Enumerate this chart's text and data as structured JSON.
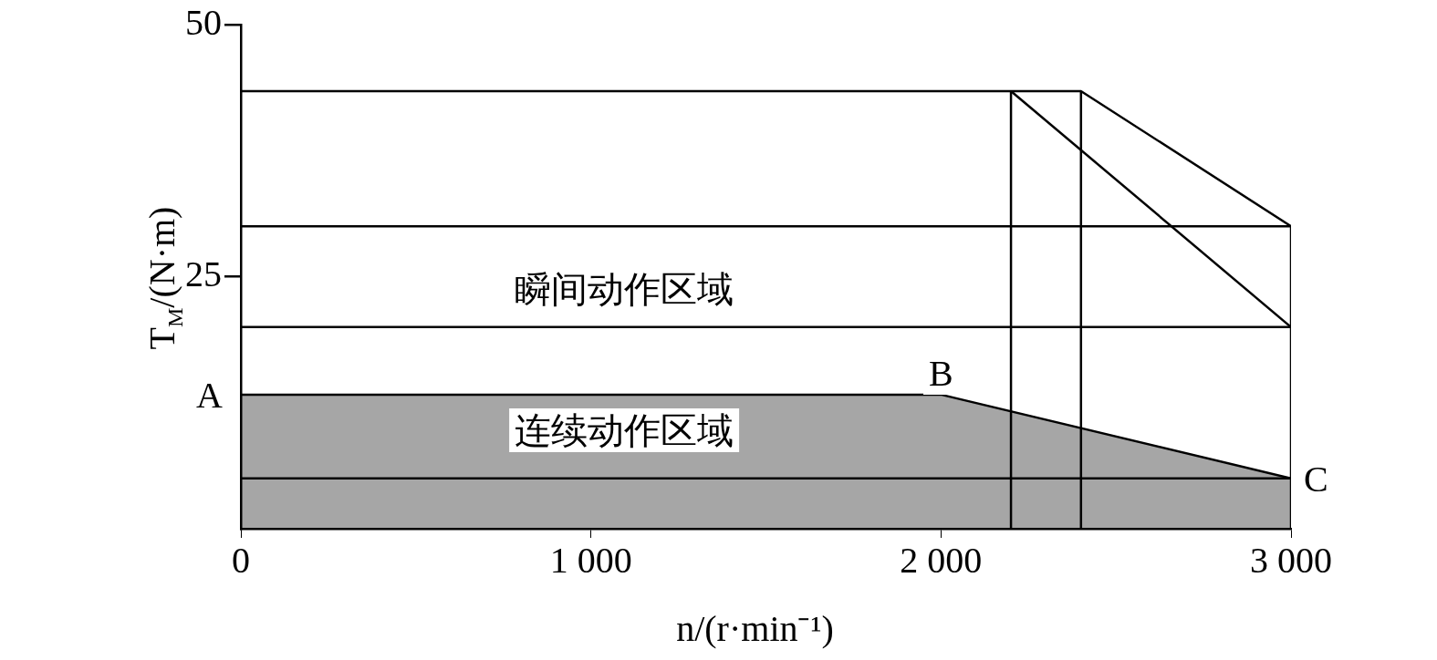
{
  "chart_data": {
    "type": "line",
    "xlabel": "n/(r·min⁻¹)",
    "ylabel": "T$_{M}$/(N·m)",
    "xlim": [
      0,
      3000
    ],
    "ylim": [
      0,
      50
    ],
    "xticks": [
      0,
      {
        "value": 1000,
        "label": "1 000"
      },
      {
        "value": 2000,
        "label": "2 000"
      },
      {
        "value": 3000,
        "label": "3 000"
      }
    ],
    "yticks": [
      25,
      50
    ],
    "grid": false,
    "legend": false,
    "marker": "none",
    "line_style": "solid",
    "series": [
      {
        "color": "#000000",
        "x": [
          0,
          2400,
          3000
        ],
        "values": [
          43.4,
          43.4,
          30
        ]
      },
      {
        "color": "#000000",
        "x": [
          2200,
          3000
        ],
        "values": [
          43.4,
          20
        ]
      },
      {
        "color": "#000000",
        "x": [
          0,
          3000
        ],
        "values": [
          30,
          30
        ]
      },
      {
        "color": "#000000",
        "x": [
          0,
          3000
        ],
        "values": [
          20,
          20
        ]
      },
      {
        "color": "#000000",
        "x": [
          0,
          3000
        ],
        "values": [
          5,
          5
        ]
      },
      {
        "color": "#000000",
        "x": [
          2200,
          2200
        ],
        "values": [
          0,
          43.4
        ]
      },
      {
        "color": "#000000",
        "x": [
          2400,
          2400
        ],
        "values": [
          0,
          43.4
        ]
      },
      {
        "color": "#000000",
        "x": [
          3000,
          3000
        ],
        "values": [
          0,
          30
        ]
      },
      {
        "type": "area",
        "color": "#000000",
        "x": [
          0,
          2000,
          3000
        ],
        "values": [
          13.3,
          13.3,
          5
        ]
      }
    ],
    "annotations": [
      "瞬间动作区域",
      "连续动作区域",
      {
        "text": "A",
        "x": 0,
        "y": 13.3
      },
      {
        "text": "B",
        "x": 2000,
        "y": 13.3
      },
      {
        "text": "C",
        "x": 3000,
        "y": 5
      }
    ]
  }
}
